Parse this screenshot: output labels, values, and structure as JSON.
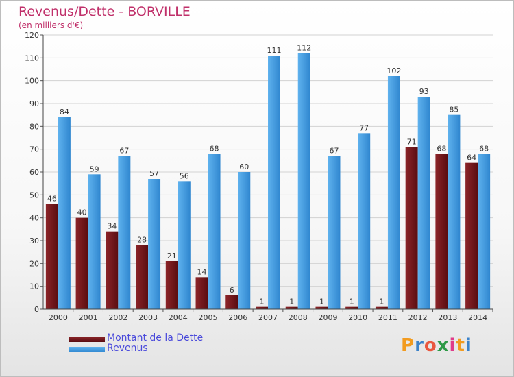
{
  "chart_data": {
    "type": "bar",
    "title": "Revenus/Dette - BORVILLE",
    "subtitle": "(en milliers d'€)",
    "categories": [
      "2000",
      "2001",
      "2002",
      "2003",
      "2004",
      "2005",
      "2006",
      "2007",
      "2008",
      "2009",
      "2010",
      "2011",
      "2012",
      "2013",
      "2014"
    ],
    "series": [
      {
        "name": "Montant de la Dette",
        "color": "#6b1216",
        "values": [
          46,
          40,
          34,
          28,
          21,
          14,
          6,
          1,
          1,
          1,
          1,
          1,
          71,
          68,
          64
        ]
      },
      {
        "name": "Revenus",
        "color": "#3d97de",
        "values": [
          84,
          59,
          67,
          57,
          56,
          68,
          60,
          111,
          112,
          67,
          77,
          102,
          93,
          85,
          68
        ]
      }
    ],
    "ylim": [
      0,
      120
    ],
    "yticks": [
      0,
      10,
      20,
      30,
      40,
      50,
      60,
      70,
      80,
      90,
      100,
      110,
      120
    ],
    "grid": true,
    "legend_position": "bottom-left"
  },
  "logo": {
    "text": "Proxiti",
    "colors": [
      "#f29b1f",
      "#3b82c9",
      "#e9573f",
      "#2e9a47",
      "#e03c8a",
      "#f29b1f",
      "#3b82c9"
    ]
  }
}
